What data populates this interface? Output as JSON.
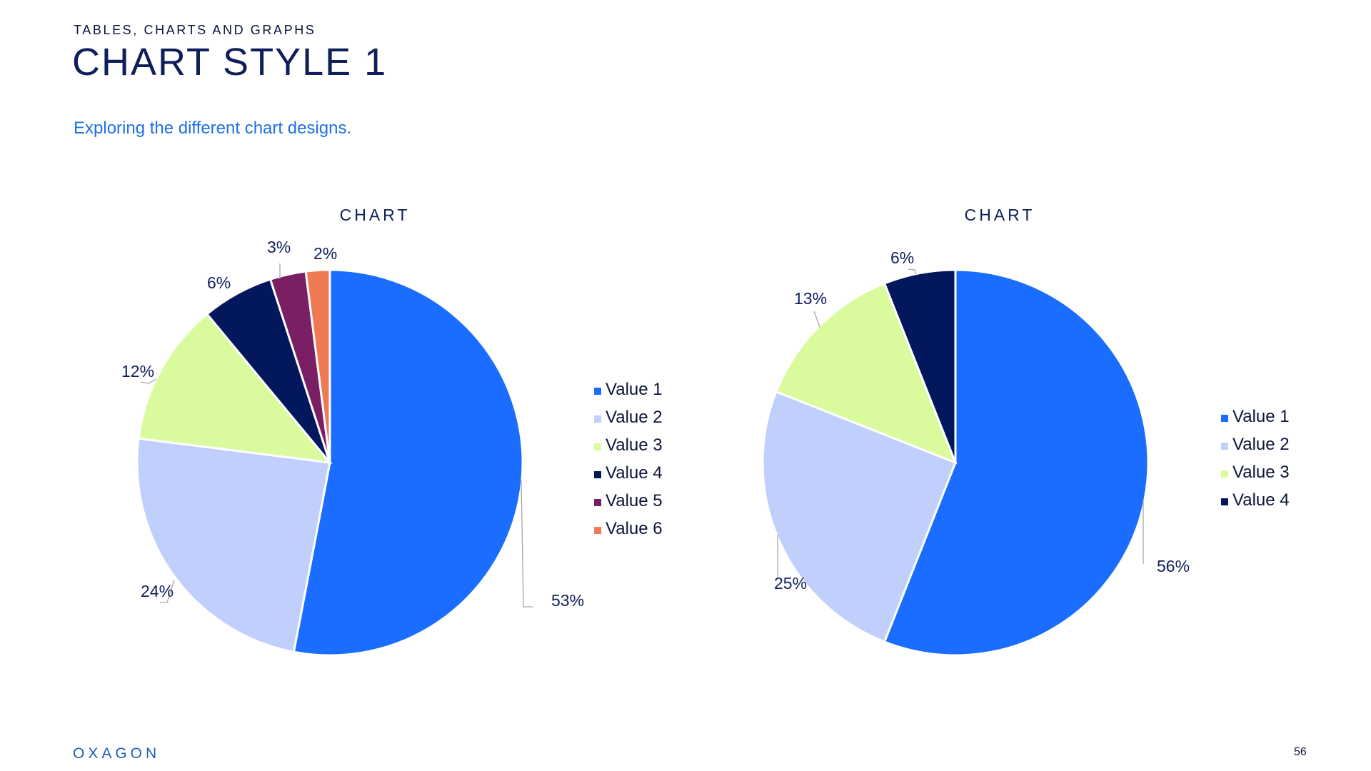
{
  "header": {
    "eyebrow": "TABLES, CHARTS AND GRAPHS",
    "title": "CHART STYLE 1",
    "subtitle": "Exploring the different chart designs."
  },
  "footer": {
    "logo": "OXAGON",
    "page_number": "56"
  },
  "colors": {
    "value1": "#1a6dff",
    "value2": "#c0cffb",
    "value3": "#dafb9d",
    "value4": "#03185c",
    "value5": "#7a1f63",
    "value6": "#ee7a54"
  },
  "chart_data": [
    {
      "type": "pie",
      "title": "CHART",
      "legend_position": "right",
      "categories": [
        "Value 1",
        "Value 2",
        "Value 3",
        "Value 4",
        "Value 5",
        "Value 6"
      ],
      "values": [
        53,
        24,
        12,
        6,
        3,
        2
      ],
      "labels": [
        "53%",
        "24%",
        "12%",
        "6%",
        "3%",
        "2%"
      ],
      "colors": [
        "#1a6dff",
        "#c0cffb",
        "#dafb9d",
        "#03185c",
        "#7a1f63",
        "#ee7a54"
      ]
    },
    {
      "type": "pie",
      "title": "CHART",
      "legend_position": "right",
      "categories": [
        "Value 1",
        "Value 2",
        "Value 3",
        "Value 4"
      ],
      "values": [
        56,
        25,
        13,
        6
      ],
      "labels": [
        "56%",
        "25%",
        "13%",
        "6%"
      ],
      "colors": [
        "#1a6dff",
        "#c0cffb",
        "#dafb9d",
        "#03185c"
      ]
    }
  ]
}
